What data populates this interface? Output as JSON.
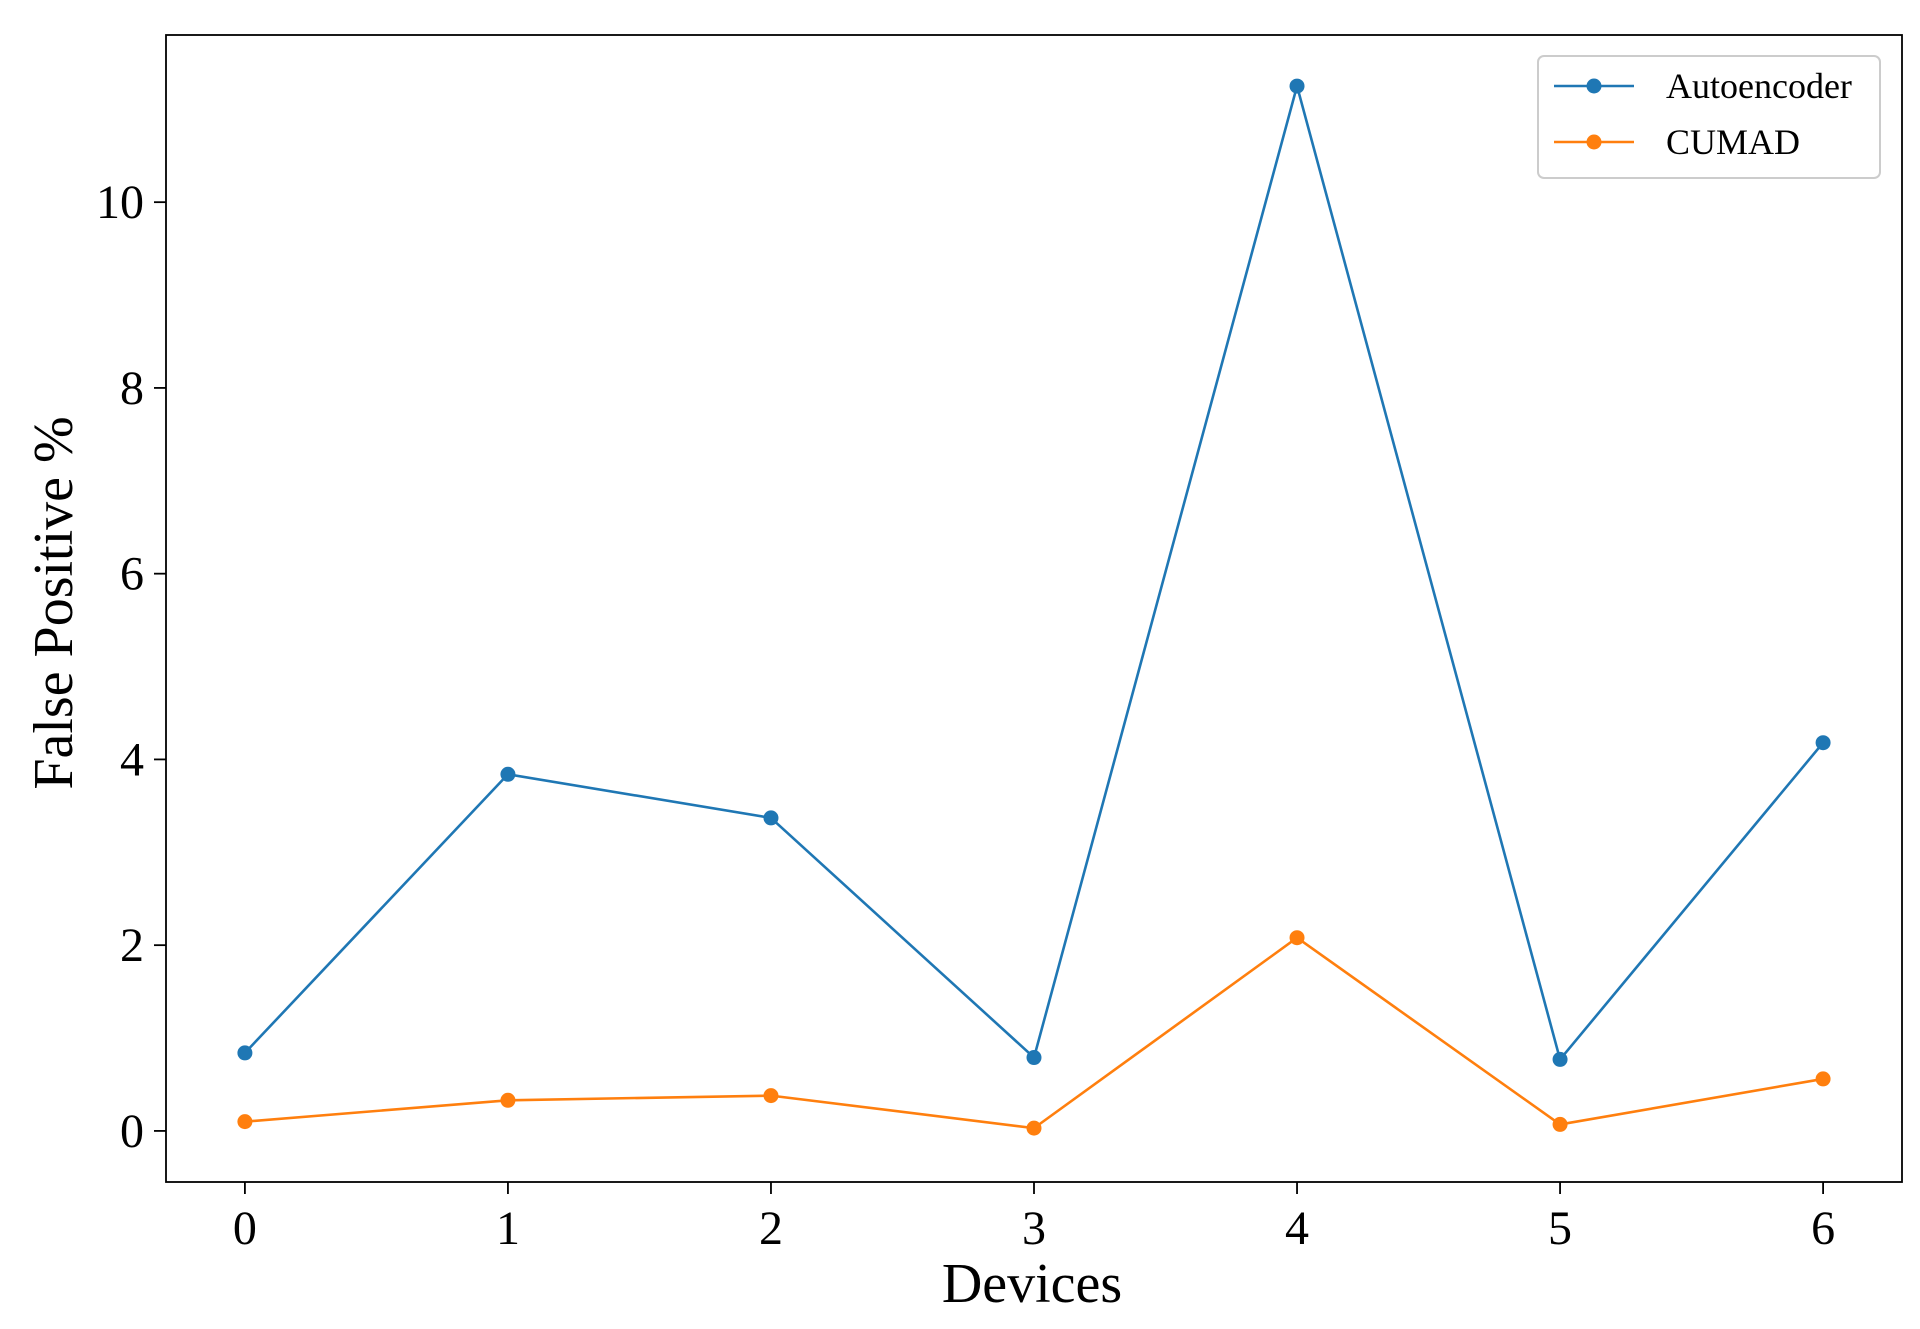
{
  "chart_data": {
    "type": "line",
    "title": "",
    "xlabel": "Devices",
    "ylabel": "False Positive %",
    "x": [
      0,
      1,
      2,
      3,
      4,
      5,
      6
    ],
    "x_ticks": [
      0,
      1,
      2,
      3,
      4,
      5,
      6
    ],
    "y_ticks": [
      0,
      2,
      4,
      6,
      8,
      10
    ],
    "xlim": [
      -0.3,
      6.3
    ],
    "ylim": [
      -0.55,
      11.8
    ],
    "grid": false,
    "legend_position": "top-right",
    "series": [
      {
        "name": "Autoencoder",
        "color": "#1f77b4",
        "marker": "circle",
        "values": [
          0.84,
          3.84,
          3.37,
          0.79,
          11.25,
          0.77,
          4.18
        ]
      },
      {
        "name": "CUMAD",
        "color": "#ff7f0e",
        "marker": "circle",
        "values": [
          0.1,
          0.33,
          0.38,
          0.03,
          2.08,
          0.07,
          0.56
        ]
      }
    ]
  }
}
